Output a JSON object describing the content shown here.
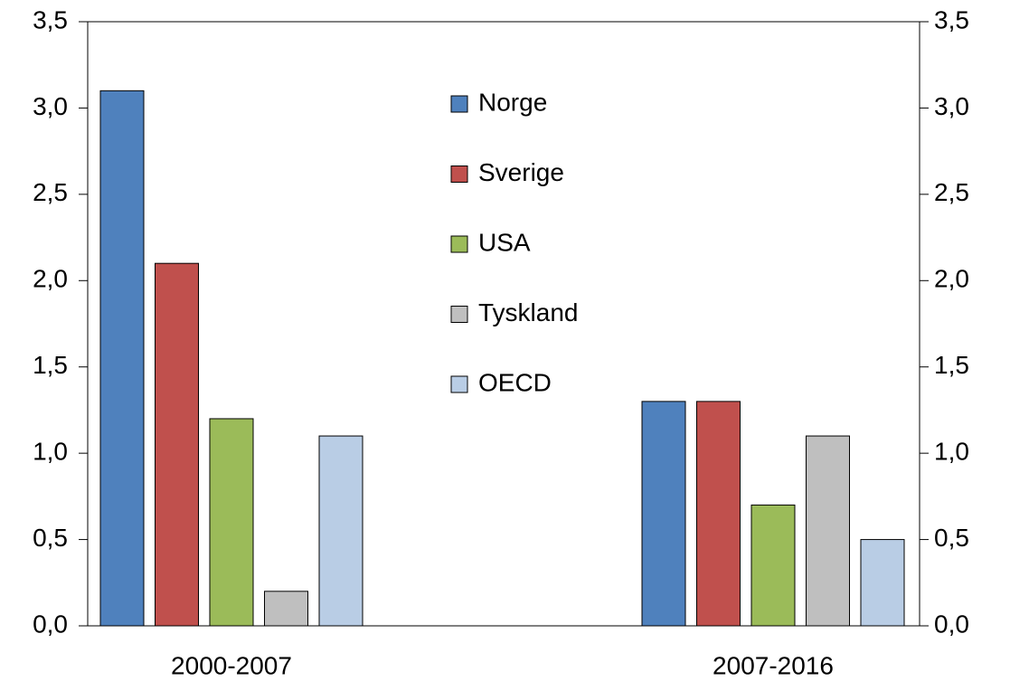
{
  "chart_data": {
    "type": "bar",
    "categories": [
      "2000-2007",
      "2007-2016"
    ],
    "series": [
      {
        "name": "Norge",
        "color": "#4f81bd",
        "values": [
          3.1,
          1.3
        ]
      },
      {
        "name": "Sverige",
        "color": "#c0504d",
        "values": [
          2.1,
          1.3
        ]
      },
      {
        "name": "USA",
        "color": "#9bbb59",
        "values": [
          1.2,
          0.7
        ]
      },
      {
        "name": "Tyskland",
        "color": "#bfbfbf",
        "values": [
          0.2,
          1.1
        ]
      },
      {
        "name": "OECD",
        "color": "#b9cde5",
        "values": [
          1.1,
          0.5
        ]
      }
    ],
    "ylim": [
      0,
      3.5
    ],
    "yticks": [
      {
        "value": 0,
        "label": "0,0"
      },
      {
        "value": 0.5,
        "label": "0,5"
      },
      {
        "value": 1,
        "label": "1,0"
      },
      {
        "value": 1.5,
        "label": "1,5"
      },
      {
        "value": 2,
        "label": "2,0"
      },
      {
        "value": 2.5,
        "label": "2,5"
      },
      {
        "value": 3,
        "label": "3,0"
      },
      {
        "value": 3.5,
        "label": "3,5"
      }
    ],
    "y2lim": [
      0,
      3.5
    ],
    "y2ticks": [
      {
        "value": 0,
        "label": "0,0"
      },
      {
        "value": 0.5,
        "label": "0,5"
      },
      {
        "value": 1,
        "label": "1,0"
      },
      {
        "value": 1.5,
        "label": "1,5"
      },
      {
        "value": 2,
        "label": "2,0"
      },
      {
        "value": 2.5,
        "label": "2,5"
      },
      {
        "value": 3,
        "label": "3,0"
      },
      {
        "value": 3.5,
        "label": "3,5"
      }
    ],
    "legend": "top-center"
  }
}
